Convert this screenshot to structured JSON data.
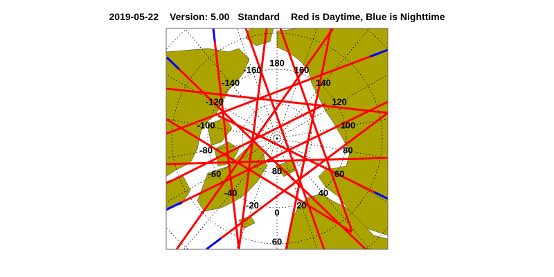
{
  "header": {
    "date": "2019-05-22",
    "version": "Version: 5.00",
    "product": "Standard",
    "legend_text": "Red is Daytime, Blue is Nighttime"
  },
  "map": {
    "projection": "north polar stereographic",
    "longitude_labels": [
      "180",
      "160",
      "140",
      "120",
      "100",
      "80",
      "60",
      "40",
      "20",
      "0",
      "-20",
      "-40",
      "-60",
      "-80",
      "-100",
      "-120",
      "-140",
      "-160"
    ],
    "latitude_labels": [
      "80",
      "60"
    ],
    "colors": {
      "land": "#aba300",
      "ocean": "#ffffff",
      "daytime": "#ff0000",
      "nighttime": "#0000ff",
      "grid": "#000000"
    }
  }
}
